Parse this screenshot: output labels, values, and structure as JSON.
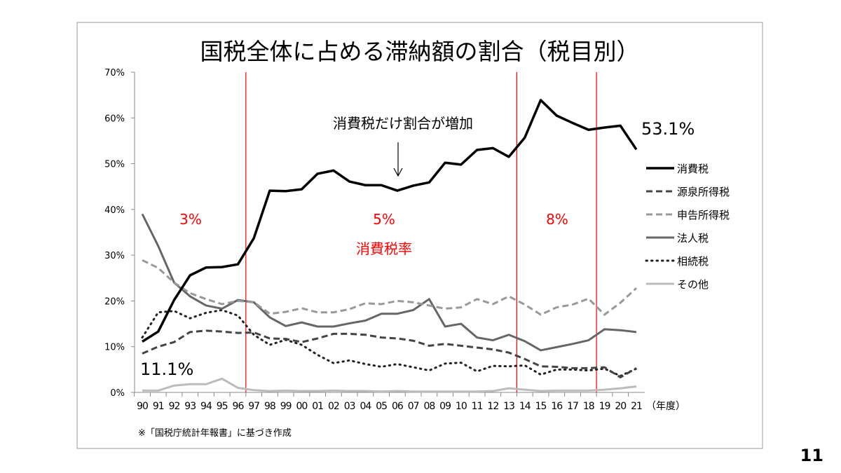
{
  "page_number": "11",
  "chart_data": {
    "type": "line",
    "title": "国税全体に占める滞納額の割合（税目別）",
    "xlabel": "（年度）",
    "ylabel": "",
    "ylim": [
      0,
      70
    ],
    "yticks": [
      "0%",
      "10%",
      "20%",
      "30%",
      "40%",
      "50%",
      "60%",
      "70%"
    ],
    "categories": [
      "90",
      "91",
      "92",
      "93",
      "94",
      "95",
      "96",
      "97",
      "98",
      "99",
      "00",
      "01",
      "02",
      "03",
      "04",
      "05",
      "06",
      "07",
      "08",
      "09",
      "10",
      "11",
      "12",
      "13",
      "14",
      "15",
      "16",
      "17",
      "18",
      "19",
      "20",
      "21"
    ],
    "series": [
      {
        "name": "消費税",
        "style": "solid-black",
        "values": [
          11.1,
          13.3,
          20.2,
          25.6,
          27.3,
          27.4,
          28,
          33.7,
          44.1,
          44,
          44.4,
          47.8,
          48.5,
          46.1,
          45.3,
          45.3,
          44.1,
          45.2,
          45.9,
          50.2,
          49.8,
          53,
          53.4,
          51.5,
          55.7,
          63.9,
          60.5,
          58.9,
          57.4,
          57.9,
          58.3,
          53.1
        ]
      },
      {
        "name": "源泉所得税",
        "style": "dashed-dark",
        "values": [
          8.5,
          10,
          11,
          13.2,
          13.5,
          13.3,
          13,
          13.1,
          11.8,
          11.7,
          11,
          11.8,
          12.8,
          12.8,
          12.6,
          12,
          11.8,
          11.3,
          10.2,
          10.6,
          10.2,
          9.8,
          9.4,
          8.7,
          7.3,
          5.7,
          5.6,
          5.3,
          5.3,
          5.5,
          3.3,
          5.3
        ]
      },
      {
        "name": "申告所得税",
        "style": "dashed-light",
        "values": [
          28.9,
          27.2,
          24,
          21.7,
          20.4,
          19.3,
          20,
          19.7,
          17.2,
          17.6,
          18.4,
          17.5,
          17.5,
          18.2,
          19.5,
          19.3,
          20,
          19.7,
          19,
          18.3,
          18.6,
          20.4,
          19.3,
          21,
          19.2,
          17,
          18.6,
          19.2,
          20.5,
          17,
          19.6,
          22.8
        ]
      },
      {
        "name": "法人税",
        "style": "solid-gray",
        "values": [
          39,
          32,
          24,
          21,
          19,
          18.3,
          20.2,
          19.7,
          16.4,
          14.5,
          15.3,
          14.4,
          14.4,
          15.1,
          15.7,
          17.2,
          17.2,
          18,
          20.4,
          14.4,
          15,
          12,
          11.4,
          12.6,
          11.2,
          9.2,
          9.9,
          10.6,
          11.4,
          13.8,
          13.6,
          13.2
        ]
      },
      {
        "name": "相続税",
        "style": "dotted",
        "values": [
          12,
          17.5,
          17.8,
          16.2,
          17.4,
          18,
          16.8,
          12.6,
          10.4,
          11.5,
          10.4,
          8.2,
          6.4,
          7,
          6.2,
          5.6,
          6.2,
          5.5,
          4.8,
          6.3,
          6.5,
          4.6,
          5.8,
          5.7,
          5.9,
          3.9,
          5,
          5,
          4.8,
          5.2,
          3.6,
          5.2
        ]
      },
      {
        "name": "その他",
        "style": "solid-lightgray",
        "values": [
          0.4,
          0.4,
          1.5,
          1.8,
          1.8,
          3,
          1,
          0.5,
          0.3,
          0.4,
          0.3,
          0.3,
          0.4,
          0.3,
          0.3,
          0.2,
          0.3,
          0.2,
          0.2,
          0.2,
          0.2,
          0.2,
          0.3,
          0.9,
          0.6,
          0.3,
          0.4,
          0.4,
          0.4,
          0.6,
          0.9,
          1.3
        ]
      }
    ],
    "rate_boundaries_after": [
      "96",
      "13",
      "18"
    ],
    "rate_labels": [
      "3%",
      "5%",
      "8%"
    ],
    "rate_caption": "消費税率",
    "annotations": {
      "arrow_text": "消費税だけ割合が増加",
      "end_value": "53.1%",
      "start_value": "11.1%"
    },
    "source_note": "※「国税庁統計年報書」に基づき作成",
    "accent_color": "#ff0000"
  }
}
